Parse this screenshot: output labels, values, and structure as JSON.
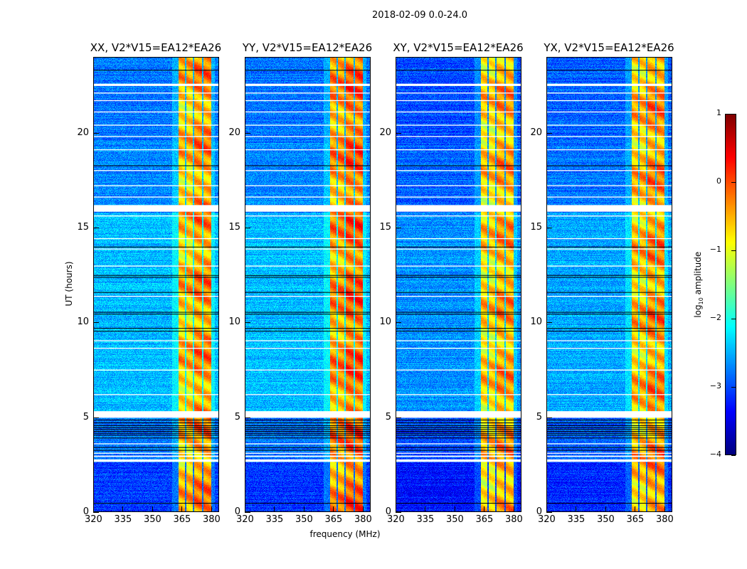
{
  "chart_data": {
    "type": "heatmap",
    "title": "2018-02-09 0.0-24.0",
    "xlabel": "frequency (MHz)",
    "ylabel": "UT (hours)",
    "xlim": [
      320,
      384
    ],
    "ylim": [
      0,
      24
    ],
    "xticks": [
      "320",
      "335",
      "350",
      "365",
      "380"
    ],
    "xtick_values": [
      320,
      335,
      350,
      365,
      380
    ],
    "yticks": [
      "0",
      "5",
      "10",
      "15",
      "20"
    ],
    "ytick_values": [
      0,
      5,
      10,
      15,
      20
    ],
    "panels": [
      {
        "title": "XX, V2*V15=EA12*EA26",
        "band_level": -0.6,
        "bg_level": -2.8
      },
      {
        "title": "YY, V2*V15=EA12*EA26",
        "band_level": -0.4,
        "bg_level": -2.8
      },
      {
        "title": "XY, V2*V15=EA12*EA26",
        "band_level": -0.7,
        "bg_level": -3.0
      },
      {
        "title": "YX, V2*V15=EA12*EA26",
        "band_level": -0.6,
        "bg_level": -2.9
      }
    ],
    "band_channels_mhz": [
      [
        363.2,
        366.5
      ],
      [
        367.2,
        370.8
      ],
      [
        371.5,
        375.3
      ],
      [
        376.0,
        380.3
      ]
    ],
    "flagged_white_hours": [
      [
        0.0,
        0.0
      ],
      [
        2.62,
        2.75
      ],
      [
        2.88,
        2.95
      ],
      [
        3.05,
        3.1
      ],
      [
        3.55,
        3.6
      ],
      [
        4.95,
        5.3
      ],
      [
        6.15,
        6.2
      ],
      [
        7.45,
        7.5
      ],
      [
        8.6,
        8.65
      ],
      [
        9.0,
        9.05
      ],
      [
        11.35,
        11.4
      ],
      [
        12.95,
        13.0
      ],
      [
        13.85,
        13.9
      ],
      [
        14.4,
        14.45
      ],
      [
        15.6,
        15.65
      ],
      [
        15.85,
        16.2
      ],
      [
        16.6,
        16.65
      ],
      [
        17.2,
        17.25
      ],
      [
        18.0,
        18.05
      ],
      [
        19.1,
        19.15
      ],
      [
        19.8,
        19.85
      ],
      [
        20.4,
        20.45
      ],
      [
        21.1,
        21.15
      ],
      [
        21.7,
        21.75
      ],
      [
        22.1,
        22.15
      ],
      [
        22.5,
        22.62
      ]
    ],
    "flagged_black_hours": [
      0.45,
      3.25,
      3.4,
      3.9,
      4.05,
      4.15,
      4.25,
      4.35,
      4.45,
      4.55,
      4.7,
      4.85,
      9.55,
      9.7,
      10.45,
      10.55,
      11.6,
      12.4,
      12.5,
      14.0,
      18.3,
      23.35
    ],
    "colorbar": {
      "label": "log",
      "label_sub": "10",
      "label_rest": " amplitude",
      "range": [
        -4,
        1
      ],
      "ticks": [
        "1",
        "0",
        "−1",
        "−2",
        "−3",
        "−4"
      ],
      "tick_values": [
        1,
        0,
        -1,
        -2,
        -3,
        -4
      ],
      "colormap": "jet"
    }
  }
}
